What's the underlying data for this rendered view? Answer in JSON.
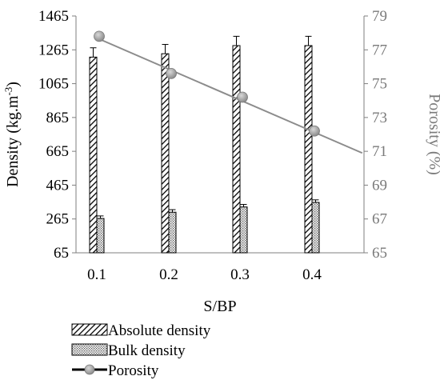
{
  "chart_data": {
    "type": "bar",
    "xlabel": "S/BP",
    "categories": [
      "0.1",
      "0.2",
      "0.3",
      "0.4"
    ],
    "ylabel": "Density (kg.m-3)",
    "ylabel_parts": {
      "main": "Density  (kg.m",
      "sup": "-3",
      "close": ")"
    },
    "ylim": [
      65,
      1465
    ],
    "yticks": [
      "65",
      "265",
      "465",
      "665",
      "865",
      "1065",
      "1265",
      "1465"
    ],
    "y2label": "Porosity (%)",
    "y2lim": [
      65,
      79
    ],
    "y2ticks": [
      "65",
      "67",
      "69",
      "71",
      "73",
      "75",
      "77",
      "79"
    ],
    "series": [
      {
        "name": "Absolute density",
        "axis": "left",
        "kind": "bar",
        "pattern": "diagonal-hatch",
        "values": [
          1222,
          1242,
          1290,
          1290
        ],
        "errors": [
          55,
          55,
          55,
          55
        ]
      },
      {
        "name": "Bulk density",
        "axis": "left",
        "kind": "bar",
        "pattern": "dots",
        "values": [
          268,
          305,
          336,
          363
        ],
        "errors": [
          15,
          15,
          15,
          15
        ]
      },
      {
        "name": "Porosity",
        "axis": "right",
        "kind": "line-marker",
        "values": [
          77.8,
          75.6,
          74.2,
          72.2
        ]
      }
    ],
    "trendline": {
      "axis": "right",
      "x": [
        0.1,
        0.47
      ],
      "y": [
        77.7,
        70.9
      ]
    },
    "grid": false,
    "legend_position": "bottom-left",
    "colors": {
      "porosity_line": "#8c8c8c",
      "porosity_marker": "#a0a0a0",
      "right_axis_text": "#7a7a7a"
    }
  }
}
